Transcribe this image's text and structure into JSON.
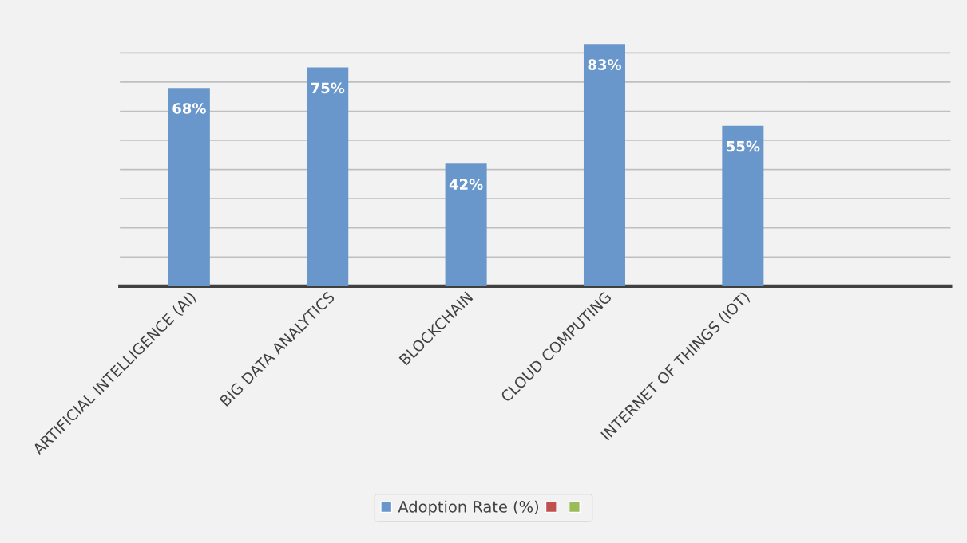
{
  "chart_data": {
    "type": "bar",
    "categories": [
      "ARTIFICIAL INTELLIGENCE (AI)",
      "BIG DATA ANALYTICS",
      "BLOCKCHAIN",
      "CLOUD COMPUTING",
      "INTERNET OF THINGS (IOT)",
      null
    ],
    "series": [
      {
        "name": "Adoption Rate (%)",
        "color": "#6a97cb",
        "values": [
          68,
          75,
          42,
          83,
          55,
          null
        ],
        "value_labels": [
          "68%",
          "75%",
          "42%",
          "83%",
          "55%",
          null
        ]
      },
      {
        "color": "#c0504d",
        "values": [
          null,
          null,
          null,
          null,
          null,
          null
        ]
      },
      {
        "color": "#9bbb59",
        "values": [
          null,
          null,
          null,
          null,
          null,
          null
        ]
      }
    ],
    "tick_labels": "x",
    "grid": "y",
    "legend": "bottom"
  }
}
